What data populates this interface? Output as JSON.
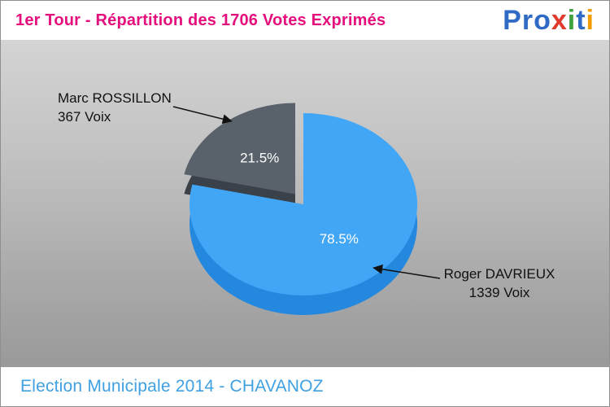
{
  "header": {
    "title": "1er Tour - Répartition des 1706 Votes Exprimés",
    "logo": {
      "name": "Proxiti",
      "letters": [
        {
          "ch": "P",
          "color": "#2f6bc4"
        },
        {
          "ch": "r",
          "color": "#2f6bc4"
        },
        {
          "ch": "o",
          "color": "#2f6bc4"
        },
        {
          "ch": "x",
          "color": "#e03a2d"
        },
        {
          "ch": "i",
          "color": "#3da23d"
        },
        {
          "ch": "t",
          "color": "#2f6bc4"
        },
        {
          "ch": "i",
          "color": "#f39c00"
        }
      ]
    }
  },
  "chart_data": {
    "type": "pie",
    "title": "1er Tour - Répartition des 1706 Votes Exprimés",
    "total": 1706,
    "total_label": "1706 Votes Exprimés",
    "effect": "3d-exploded",
    "legend_position": "callout-labels",
    "slices": [
      {
        "name": "Roger DAVRIEUX",
        "votes": 1339,
        "votes_label": "1339 Voix",
        "percent": 78.5,
        "percent_label": "78.5%",
        "color": "#41a6f6",
        "side_color": "#2489de",
        "exploded": false
      },
      {
        "name": "Marc ROSSILLON",
        "votes": 367,
        "votes_label": "367 Voix",
        "percent": 21.5,
        "percent_label": "21.5%",
        "color": "#59616b",
        "side_color": "#3b4148",
        "exploded": true
      }
    ]
  },
  "footer": {
    "caption": "Election Municipale 2014 - CHAVANOZ"
  }
}
